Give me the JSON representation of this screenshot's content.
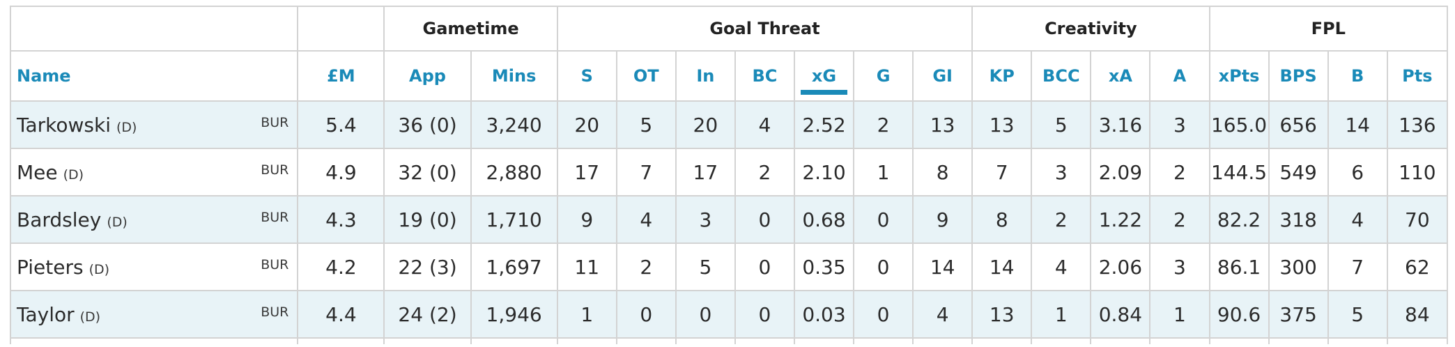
{
  "groups": {
    "gametime": "Gametime",
    "goal_threat": "Goal Threat",
    "creativity": "Creativity",
    "fpl": "FPL"
  },
  "columns": [
    "Name",
    "£M",
    "App",
    "Mins",
    "S",
    "OT",
    "In",
    "BC",
    "xG",
    "G",
    "GI",
    "KP",
    "BCC",
    "xA",
    "A",
    "xPts",
    "BPS",
    "B",
    "Pts"
  ],
  "sorted_column": "xG",
  "colors": {
    "accent": "#1a8ab8",
    "row_stripe": "#e8f3f7",
    "border": "#d3d3d3"
  },
  "rows": [
    {
      "name": "Tarkowski",
      "pos": "(D)",
      "team": "BUR",
      "price": "5.4",
      "app": "36 (0)",
      "mins": "3,240",
      "s": "20",
      "ot": "5",
      "in": "20",
      "bc": "4",
      "xg": "2.52",
      "g": "2",
      "gi": "13",
      "kp": "13",
      "bcc": "5",
      "xa": "3.16",
      "a": "3",
      "xpts": "165.0",
      "bps": "656",
      "b": "14",
      "pts": "136"
    },
    {
      "name": "Mee",
      "pos": "(D)",
      "team": "BUR",
      "price": "4.9",
      "app": "32 (0)",
      "mins": "2,880",
      "s": "17",
      "ot": "7",
      "in": "17",
      "bc": "2",
      "xg": "2.10",
      "g": "1",
      "gi": "8",
      "kp": "7",
      "bcc": "3",
      "xa": "2.09",
      "a": "2",
      "xpts": "144.5",
      "bps": "549",
      "b": "6",
      "pts": "110"
    },
    {
      "name": "Bardsley",
      "pos": "(D)",
      "team": "BUR",
      "price": "4.3",
      "app": "19 (0)",
      "mins": "1,710",
      "s": "9",
      "ot": "4",
      "in": "3",
      "bc": "0",
      "xg": "0.68",
      "g": "0",
      "gi": "9",
      "kp": "8",
      "bcc": "2",
      "xa": "1.22",
      "a": "2",
      "xpts": "82.2",
      "bps": "318",
      "b": "4",
      "pts": "70"
    },
    {
      "name": "Pieters",
      "pos": "(D)",
      "team": "BUR",
      "price": "4.2",
      "app": "22 (3)",
      "mins": "1,697",
      "s": "11",
      "ot": "2",
      "in": "5",
      "bc": "0",
      "xg": "0.35",
      "g": "0",
      "gi": "14",
      "kp": "14",
      "bcc": "4",
      "xa": "2.06",
      "a": "3",
      "xpts": "86.1",
      "bps": "300",
      "b": "7",
      "pts": "62"
    },
    {
      "name": "Taylor",
      "pos": "(D)",
      "team": "BUR",
      "price": "4.4",
      "app": "24 (2)",
      "mins": "1,946",
      "s": "1",
      "ot": "0",
      "in": "0",
      "bc": "0",
      "xg": "0.03",
      "g": "0",
      "gi": "4",
      "kp": "13",
      "bcc": "1",
      "xa": "0.84",
      "a": "1",
      "xpts": "90.6",
      "bps": "375",
      "b": "5",
      "pts": "84"
    }
  ]
}
